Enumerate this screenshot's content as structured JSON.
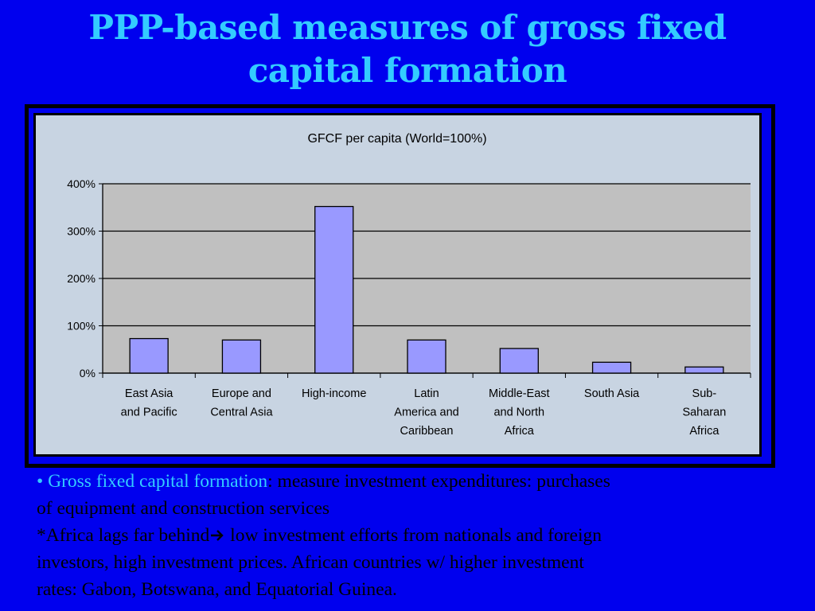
{
  "slide": {
    "title_line1": "PPP-based measures of gross fixed",
    "title_line2": "capital formation"
  },
  "chart_data": {
    "type": "bar",
    "title": "GFCF per capita (World=100%)",
    "categories": [
      [
        "East Asia",
        "and Pacific"
      ],
      [
        "Europe and",
        "Central Asia"
      ],
      [
        "High-income"
      ],
      [
        "Latin",
        "America and",
        "Caribbean"
      ],
      [
        "Middle-East",
        "and North",
        "Africa"
      ],
      [
        "South Asia"
      ],
      [
        "Sub-",
        "Saharan",
        "Africa"
      ]
    ],
    "values": [
      73,
      70,
      352,
      70,
      52,
      23,
      13
    ],
    "ylim": [
      0,
      400
    ],
    "yticks": [
      "0%",
      "100%",
      "200%",
      "300%",
      "400%"
    ],
    "ytick_values": [
      0,
      100,
      200,
      300,
      400
    ],
    "xlabel": "",
    "ylabel": "",
    "grid": true,
    "colors": {
      "bar_fill": "#9999ff",
      "plot_bg": "#c0c0c0",
      "chart_bg": "#c8d4e2"
    }
  },
  "notes": {
    "bullet_marker": "•",
    "term": "Gross fixed capital formation",
    "definition_part1": ": measure investment expenditures: purchases",
    "definition_part2": "of equipment and construction services",
    "africa_lead": "*Africa lags far behind",
    "africa_arrow_icon": "right-arrow-icon",
    "africa_tail": " low investment efforts from nationals and foreign",
    "line4": "investors, high investment prices. African countries w/ higher investment",
    "line5": "rates: Gabon, Botswana, and Equatorial Guinea."
  }
}
